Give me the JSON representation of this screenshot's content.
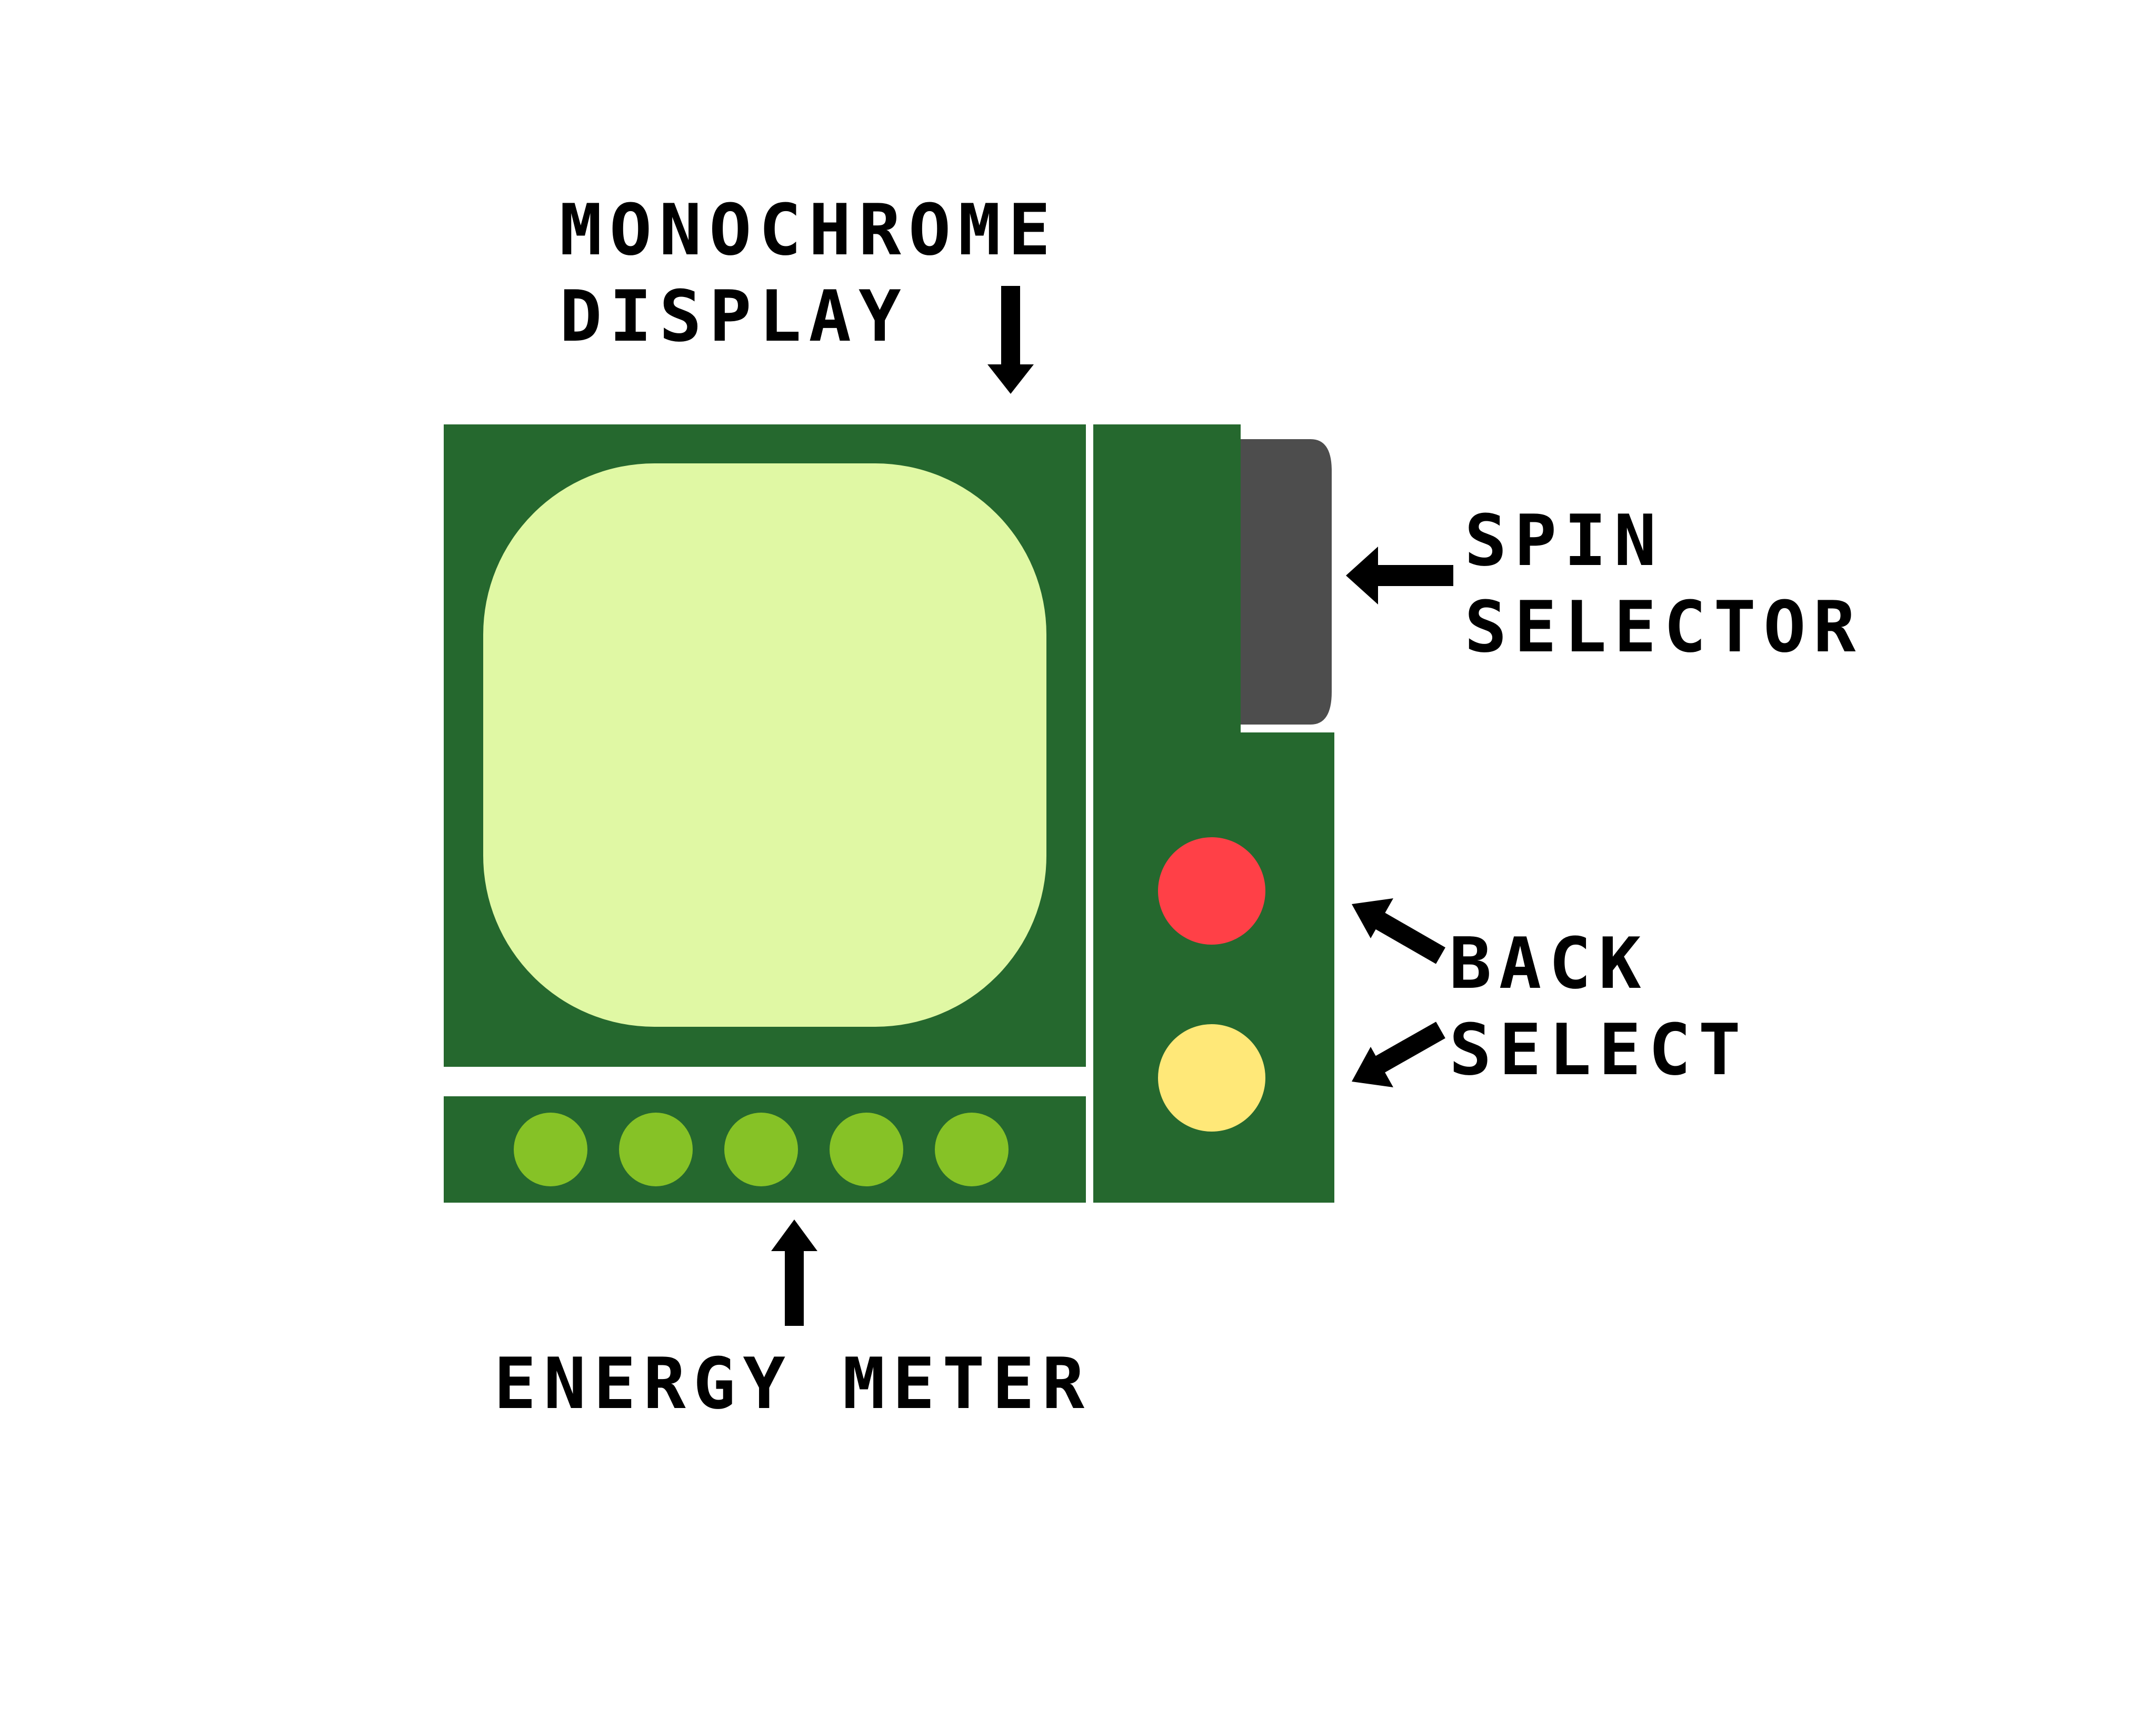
{
  "labels": {
    "display_line1": "MONOCHROME",
    "display_line2": "DISPLAY",
    "spin_line1": "SPIN",
    "spin_line2": "SELECTOR",
    "back": "BACK",
    "select": "SELECT",
    "energy": "ENERGY METER"
  },
  "colors": {
    "device_body": "#25682e",
    "screen": "#e0f8a4",
    "spin_selector": "#4d4d4d",
    "back_button": "#ff4047",
    "select_button": "#ffe878",
    "energy_dot": "#86c226",
    "label_text": "#000000"
  },
  "energy_meter": {
    "total": 5,
    "filled": 5
  }
}
